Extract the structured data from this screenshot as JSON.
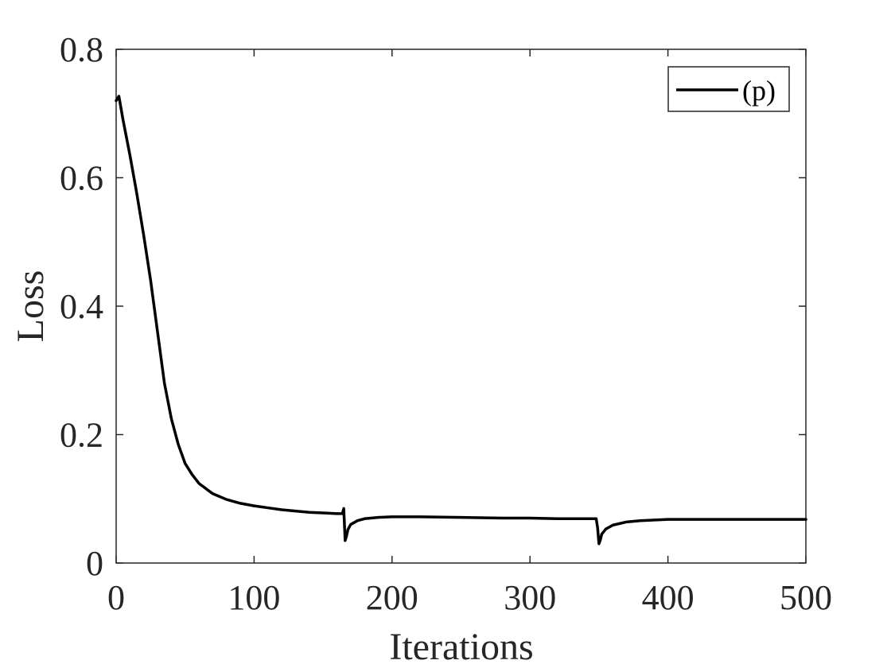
{
  "chart_data": {
    "type": "line",
    "title": "",
    "xlabel": "Iterations",
    "ylabel": "Loss",
    "xlim": [
      0,
      500
    ],
    "ylim": [
      0,
      0.8
    ],
    "xticks": [
      0,
      100,
      200,
      300,
      400,
      500
    ],
    "xtick_labels": [
      "0",
      "100",
      "200",
      "300",
      "400",
      "500"
    ],
    "yticks": [
      0,
      0.2,
      0.4,
      0.6,
      0.8
    ],
    "ytick_labels": [
      "0",
      "0.2",
      "0.4",
      "0.6",
      "0.8"
    ],
    "grid": false,
    "legend_position": "top-right",
    "line_color": "#000000",
    "series": [
      {
        "name": "(p)",
        "x": [
          0,
          2,
          5,
          10,
          15,
          20,
          25,
          30,
          35,
          40,
          45,
          50,
          55,
          60,
          70,
          80,
          90,
          100,
          110,
          120,
          130,
          140,
          150,
          160,
          164,
          165,
          166,
          167,
          168,
          170,
          175,
          180,
          190,
          200,
          220,
          250,
          280,
          300,
          320,
          340,
          348,
          349,
          350,
          351,
          352,
          355,
          360,
          370,
          380,
          400,
          430,
          460,
          500
        ],
        "y": [
          0.72,
          0.727,
          0.69,
          0.635,
          0.575,
          0.51,
          0.44,
          0.36,
          0.28,
          0.225,
          0.185,
          0.155,
          0.138,
          0.124,
          0.108,
          0.099,
          0.093,
          0.089,
          0.086,
          0.083,
          0.081,
          0.079,
          0.078,
          0.077,
          0.077,
          0.085,
          0.035,
          0.042,
          0.052,
          0.06,
          0.066,
          0.069,
          0.071,
          0.072,
          0.072,
          0.071,
          0.07,
          0.07,
          0.069,
          0.069,
          0.069,
          0.055,
          0.03,
          0.036,
          0.045,
          0.053,
          0.059,
          0.064,
          0.066,
          0.068,
          0.068,
          0.068,
          0.068
        ]
      }
    ]
  }
}
